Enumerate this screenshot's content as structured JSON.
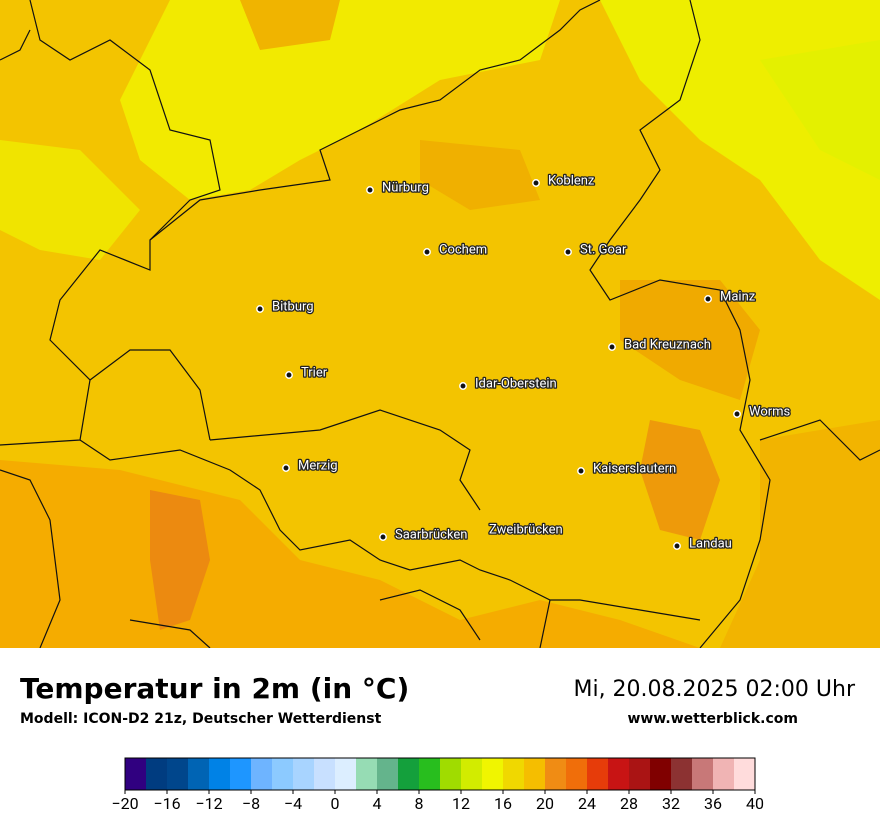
{
  "header": {
    "title": "Temperatur in 2m (in °C)",
    "subtitle": "Modell: ICON-D2 21z, Deutscher Wetterdienst",
    "datetime": "Mi, 20.08.2025 02:00 Uhr",
    "website": "www.wetterblick.com"
  },
  "cities": [
    "Nürburg",
    "Koblenz",
    "Cochem",
    "St. Goar",
    "Mainz",
    "Bitburg",
    "Bad Kreuznach",
    "Trier",
    "Idar-Oberstein",
    "Worms",
    "Merzig",
    "Kaiserslautern",
    "Saarbrücken",
    "Zweibrücken",
    "Landau"
  ],
  "colorbar": {
    "ticks": [
      {
        "value": -20,
        "label": "−20"
      },
      {
        "value": -16,
        "label": "−16"
      },
      {
        "value": -12,
        "label": "−12"
      },
      {
        "value": -8,
        "label": "−8"
      },
      {
        "value": -4,
        "label": "−4"
      },
      0,
      4,
      8,
      12,
      16,
      20,
      24,
      28,
      32,
      36,
      40
    ],
    "colors": [
      "#300080",
      "#003c80",
      "#00468c",
      "#0064b4",
      "#0082e6",
      "#1e96ff",
      "#6eb4ff",
      "#8ccaff",
      "#a8d4ff",
      "#c8e0ff",
      "#dceeff",
      "#96dcb4",
      "#64b48c",
      "#14a03c",
      "#28be1e",
      "#a0dc00",
      "#d2ec00",
      "#f0f500",
      "#f0d800",
      "#f5be00",
      "#f08c14",
      "#f06e0a",
      "#e63c0a",
      "#c81414",
      "#aa1414",
      "#800000",
      "#8c3232",
      "#c87878",
      "#f0b4b4",
      "#ffdcdc"
    ]
  }
}
